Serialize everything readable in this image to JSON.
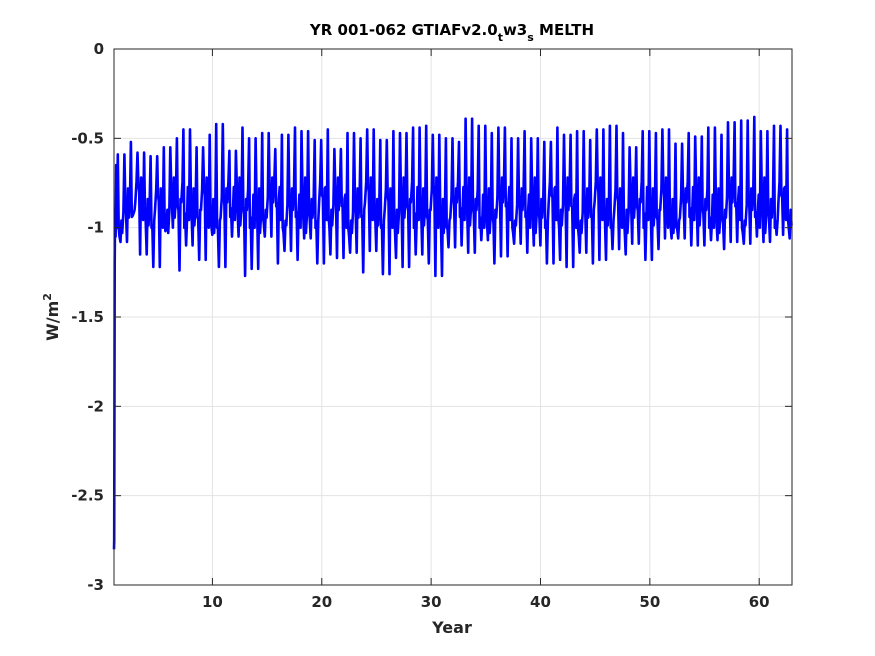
{
  "chart_data": {
    "type": "line",
    "title": {
      "main": "YR 001-062 GTIAFv2.0",
      "sub1": "t",
      "mid": "w3",
      "sub2": "s",
      "tail": " MELTH"
    },
    "xlabel": "Year",
    "ylabel": {
      "base": "W/m",
      "sup": "2"
    },
    "xlim": [
      1,
      63
    ],
    "ylim": [
      -3,
      0
    ],
    "xticks": [
      10,
      20,
      30,
      40,
      50,
      60
    ],
    "xtick_labels": [
      "10",
      "20",
      "30",
      "40",
      "50",
      "60"
    ],
    "yticks": [
      0,
      -0.5,
      -1,
      -1.5,
      -2,
      -2.5,
      -3
    ],
    "ytick_labels": [
      "0",
      "-0.5",
      "-1",
      "-1.5",
      "-2",
      "-2.5",
      "-3"
    ],
    "grid": true,
    "series": [
      {
        "color": "#0000ff",
        "spinup": [
          [
            1.0,
            -2.8
          ],
          [
            1.02,
            -2.75
          ],
          [
            1.06,
            -1.2
          ],
          [
            1.1,
            -0.9
          ],
          [
            1.15,
            -1.05
          ],
          [
            1.2,
            -0.65
          ]
        ],
        "cycle_start": 1.2,
        "cycle_end": 62.8,
        "cycle_period": 0.6,
        "annual_max": [
          -0.59,
          -0.52,
          -0.58,
          -0.6,
          -0.55,
          -0.5,
          -0.45,
          -0.55,
          -0.48,
          -0.42,
          -0.57,
          -0.44,
          -0.5,
          -0.47,
          -0.56,
          -0.48,
          -0.44,
          -0.46,
          -0.51,
          -0.45,
          -0.56,
          -0.47,
          -0.5,
          -0.45,
          -0.51,
          -0.46,
          -0.47,
          -0.44,
          -0.43,
          -0.48,
          -0.5,
          -0.52,
          -0.39,
          -0.43,
          -0.47,
          -0.44,
          -0.5,
          -0.46,
          -0.5,
          -0.52,
          -0.44,
          -0.48,
          -0.46,
          -0.51,
          -0.45,
          -0.43,
          -0.47,
          -0.55,
          -0.46,
          -0.47,
          -0.45,
          -0.53,
          -0.47,
          -0.49,
          -0.44,
          -0.48,
          -0.41,
          -0.4,
          -0.38,
          -0.46,
          -0.43,
          -0.45
        ],
        "annual_min": [
          -1.08,
          -0.92,
          -1.15,
          -1.22,
          -1.0,
          -1.24,
          -1.1,
          -1.18,
          -1.04,
          -1.22,
          -1.05,
          -1.27,
          -1.23,
          -1.05,
          -1.2,
          -1.13,
          -1.18,
          -1.06,
          -1.2,
          -1.15,
          -1.17,
          -1.14,
          -1.25,
          -1.13,
          -1.26,
          -1.17,
          -1.22,
          -1.15,
          -1.2,
          -1.27,
          -1.11,
          -1.1,
          -1.14,
          -1.07,
          -1.2,
          -1.16,
          -1.09,
          -1.14,
          -1.1,
          -1.2,
          -1.18,
          -1.22,
          -1.14,
          -1.2,
          -1.18,
          -1.12,
          -1.15,
          -1.09,
          -1.18,
          -1.12,
          -1.06,
          -1.06,
          -1.1,
          -1.1,
          -1.07,
          -1.12,
          -1.08,
          -1.09,
          -1.05,
          -1.08,
          -1.04,
          -1.06
        ],
        "interannual_range": [
          -1.0,
          -0.7
        ]
      }
    ]
  }
}
